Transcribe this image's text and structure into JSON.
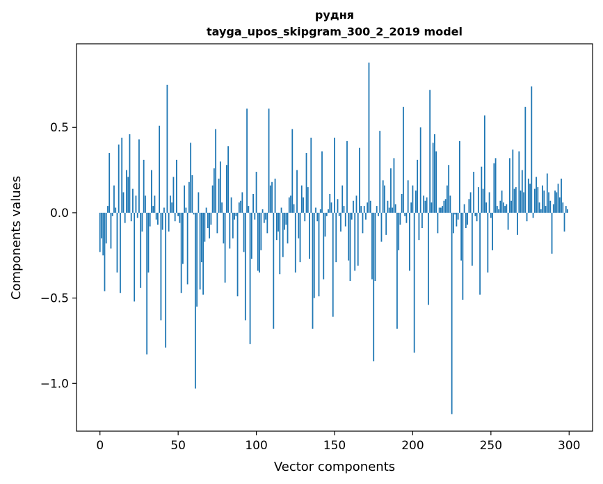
{
  "chart_data": {
    "type": "bar",
    "title": "рудня",
    "subtitle": "tayga_upos_skipgram_300_2_2019 model",
    "xlabel": "Vector components",
    "ylabel": "Components values",
    "xlim": [
      -15,
      315
    ],
    "ylim": [
      -1.28,
      0.99
    ],
    "xticks": [
      0,
      50,
      100,
      150,
      200,
      250,
      300
    ],
    "xtick_labels": [
      "0",
      "50",
      "100",
      "150",
      "200",
      "250",
      "300"
    ],
    "yticks": [
      0.5,
      0.0,
      -0.5,
      -1.0
    ],
    "ytick_labels": [
      "0.5",
      "0.0",
      "−0.5",
      "−1.0"
    ],
    "bar_color": "#1f77b4",
    "bar_width": 0.8,
    "values": [
      -0.23,
      -0.15,
      -0.25,
      -0.46,
      -0.18,
      0.04,
      0.35,
      -0.21,
      -0.02,
      0.16,
      0.03,
      -0.35,
      0.4,
      -0.47,
      0.44,
      0.12,
      -0.06,
      0.25,
      0.21,
      0.46,
      -0.05,
      0.14,
      -0.52,
      0.1,
      -0.03,
      0.43,
      -0.44,
      -0.11,
      0.31,
      0.1,
      -0.83,
      -0.35,
      -0.08,
      0.25,
      0.04,
      0.1,
      -0.04,
      -0.07,
      0.51,
      -0.63,
      -0.1,
      0.03,
      -0.79,
      0.75,
      -0.11,
      0.1,
      0.06,
      0.21,
      -0.05,
      0.31,
      -0.02,
      -0.06,
      -0.47,
      -0.3,
      0.16,
      0.03,
      -0.42,
      0.18,
      0.41,
      0.22,
      -0.01,
      -1.03,
      -0.55,
      0.12,
      -0.45,
      -0.29,
      -0.48,
      -0.17,
      0.03,
      -0.09,
      -0.15,
      -0.07,
      0.16,
      0.26,
      0.49,
      -0.12,
      0.2,
      0.3,
      0.06,
      -0.18,
      -0.41,
      0.28,
      0.39,
      -0.21,
      0.09,
      -0.15,
      -0.04,
      -0.02,
      -0.49,
      0.06,
      0.07,
      0.12,
      -0.23,
      -0.63,
      0.61,
      0.04,
      -0.77,
      -0.27,
      0.11,
      -0.04,
      0.24,
      -0.34,
      -0.35,
      -0.22,
      0.02,
      -0.06,
      -0.04,
      -0.12,
      0.61,
      0.16,
      0.18,
      -0.68,
      0.2,
      -0.16,
      -0.11,
      -0.36,
      0.03,
      -0.26,
      -0.1,
      -0.07,
      -0.18,
      0.09,
      0.1,
      0.49,
      0.05,
      -0.35,
      0.25,
      -0.15,
      -0.29,
      0.16,
      0.09,
      -0.05,
      0.35,
      0.15,
      -0.27,
      0.44,
      -0.68,
      -0.5,
      0.03,
      -0.05,
      -0.49,
      0.02,
      0.36,
      -0.39,
      -0.14,
      -0.02,
      0.02,
      0.11,
      0.06,
      -0.61,
      0.44,
      -0.29,
      0.08,
      -0.02,
      -0.11,
      0.16,
      0.04,
      -0.08,
      0.42,
      -0.28,
      -0.4,
      -0.04,
      0.07,
      -0.34,
      0.1,
      -0.31,
      0.38,
      0.04,
      -0.12,
      0.04,
      -0.04,
      0.06,
      0.88,
      0.07,
      -0.39,
      -0.87,
      -0.4,
      0.04,
      -0.02,
      0.48,
      -0.17,
      0.19,
      0.16,
      -0.13,
      0.07,
      0.03,
      0.26,
      0.03,
      0.32,
      0.05,
      -0.68,
      -0.22,
      -0.07,
      0.11,
      0.62,
      -0.02,
      -0.06,
      0.19,
      -0.34,
      0.06,
      0.16,
      -0.82,
      0.13,
      0.31,
      -0.16,
      0.5,
      -0.09,
      0.1,
      0.07,
      0.09,
      -0.54,
      0.72,
      0.06,
      0.41,
      0.46,
      0.36,
      -0.12,
      0.03,
      0.03,
      0.04,
      0.07,
      0.08,
      0.16,
      0.28,
      0.1,
      -1.18,
      -0.12,
      -0.01,
      -0.08,
      -0.04,
      0.42,
      -0.28,
      -0.51,
      0.05,
      -0.09,
      -0.07,
      0.08,
      0.12,
      -0.31,
      0.24,
      -0.02,
      -0.05,
      0.15,
      -0.48,
      0.27,
      0.14,
      0.57,
      0.06,
      -0.35,
      0.12,
      -0.03,
      -0.22,
      0.29,
      0.32,
      0.04,
      0.02,
      0.07,
      0.13,
      0.06,
      0.04,
      0.05,
      -0.1,
      0.32,
      0.07,
      0.37,
      0.14,
      0.15,
      -0.13,
      0.36,
      0.13,
      0.25,
      0.12,
      0.62,
      -0.05,
      0.2,
      0.17,
      0.74,
      -0.03,
      0.14,
      0.21,
      0.15,
      0.06,
      0.02,
      0.16,
      0.13,
      0.04,
      0.23,
      0.12,
      0.07,
      -0.24,
      0.05,
      0.13,
      0.12,
      0.17,
      0.09,
      0.2,
      0.06,
      -0.11,
      0.04,
      0.02
    ]
  }
}
